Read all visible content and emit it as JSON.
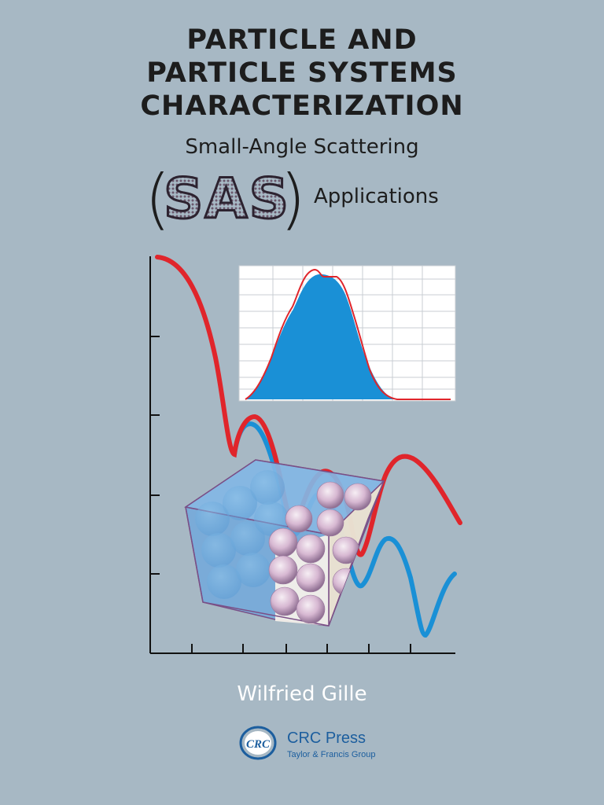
{
  "title_lines": [
    "PARTICLE AND",
    "PARTICLE SYSTEMS",
    "CHARACTERIZATION"
  ],
  "subtitle": "Small-Angle Scattering",
  "sas": {
    "left_paren": "(",
    "acronym": "SAS",
    "right_paren": ")",
    "applications": "Applications"
  },
  "author": "Wilfried Gille",
  "publisher": {
    "logo_text": "CRC",
    "name": "CRC Press",
    "group": "Taylor & Francis Group"
  },
  "colors": {
    "background": "#a7b8c4",
    "red_curve": "#e0252b",
    "blue_curve": "#1a90d6",
    "publisher_blue": "#1c5e9e"
  }
}
